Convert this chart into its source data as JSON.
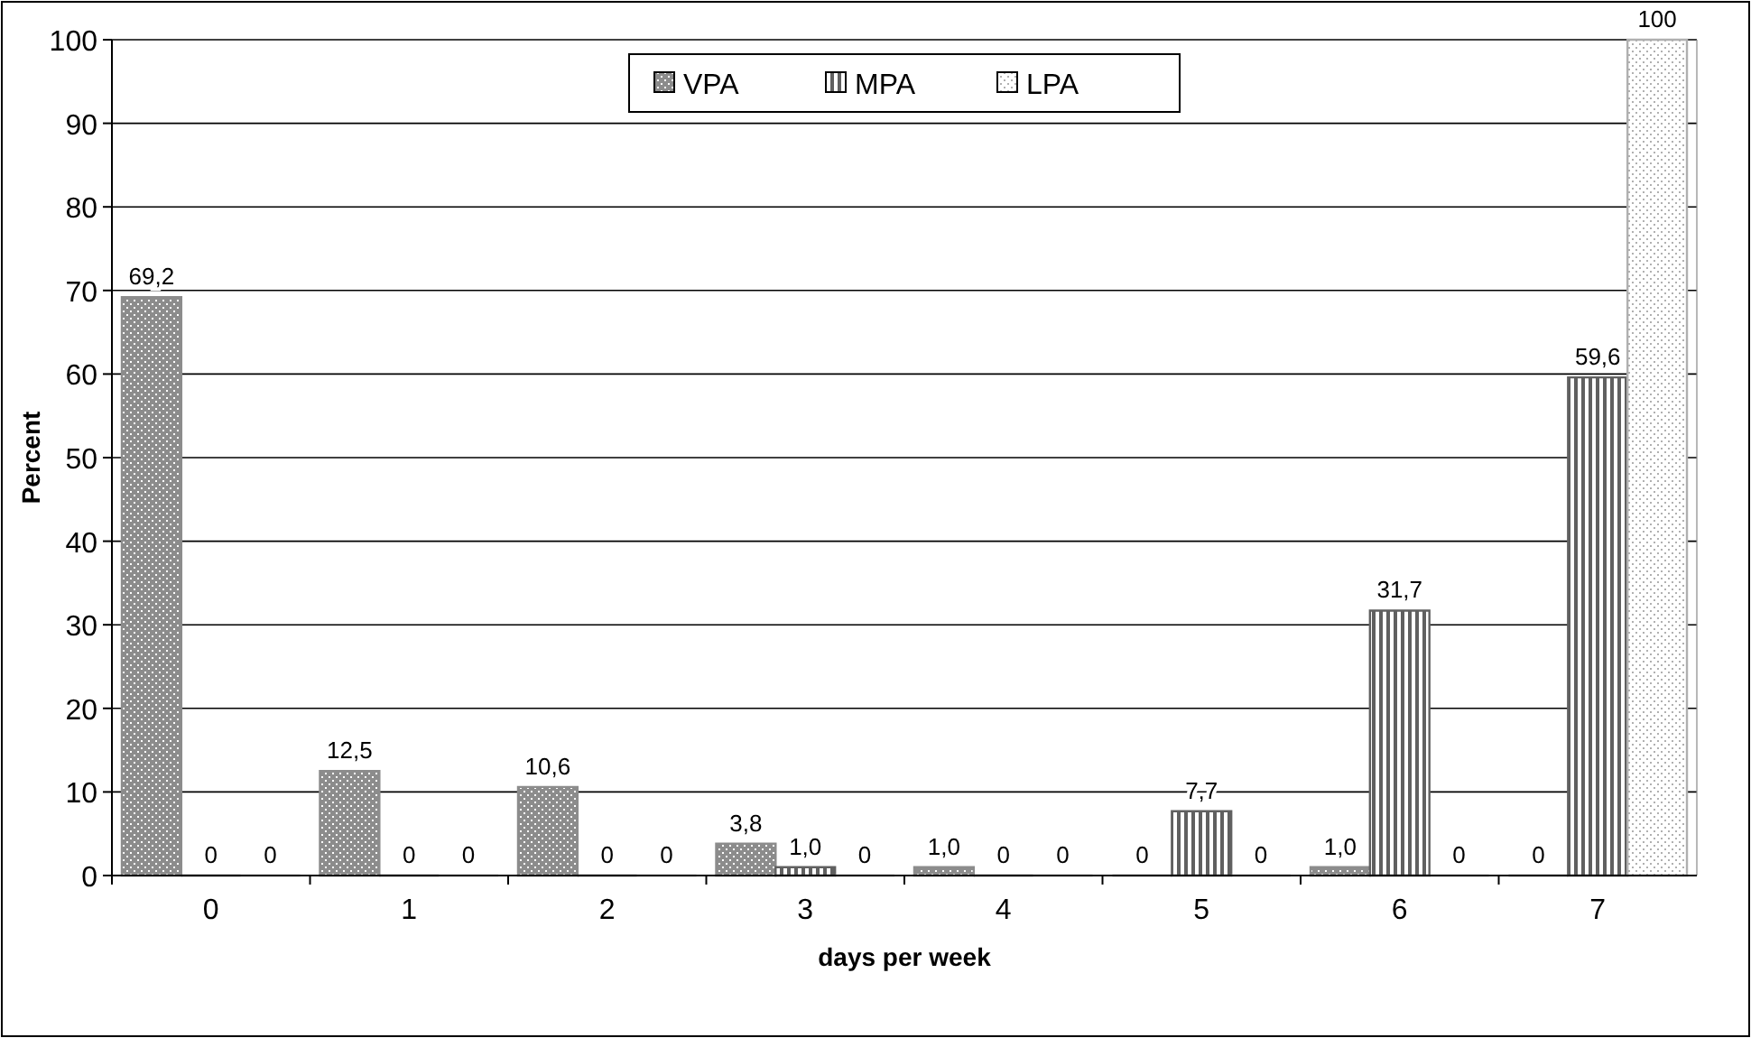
{
  "chart_data": {
    "type": "bar",
    "xlabel": "days per week",
    "ylabel": "Percent",
    "categories": [
      "0",
      "1",
      "2",
      "3",
      "4",
      "5",
      "6",
      "7"
    ],
    "series": [
      {
        "name": "VPA",
        "color": "#8c8c8c",
        "values": [
          69.2,
          12.5,
          10.6,
          3.8,
          1.0,
          0,
          1.0,
          0
        ],
        "value_labels": [
          "69,2",
          "12,5",
          "10,6",
          "3,8",
          "1,0",
          "0",
          "1,0",
          "0"
        ]
      },
      {
        "name": "MPA",
        "color": "#606060",
        "values": [
          0,
          0,
          0,
          1.0,
          0,
          7.7,
          31.7,
          59.6
        ],
        "value_labels": [
          "0",
          "0",
          "0",
          "1,0",
          "0",
          "7,7",
          "31,7",
          "59,6"
        ]
      },
      {
        "name": "LPA",
        "color": "#b0b0b0",
        "values": [
          0,
          0,
          0,
          0,
          0,
          0,
          0,
          100
        ],
        "value_labels": [
          "0",
          "0",
          "0",
          "0",
          "0",
          "0",
          "0",
          "100"
        ]
      }
    ],
    "ylim": [
      0,
      100
    ],
    "yticks": [
      0,
      10,
      20,
      30,
      40,
      50,
      60,
      70,
      80,
      90,
      100
    ],
    "grid": "y",
    "legend": "top"
  }
}
